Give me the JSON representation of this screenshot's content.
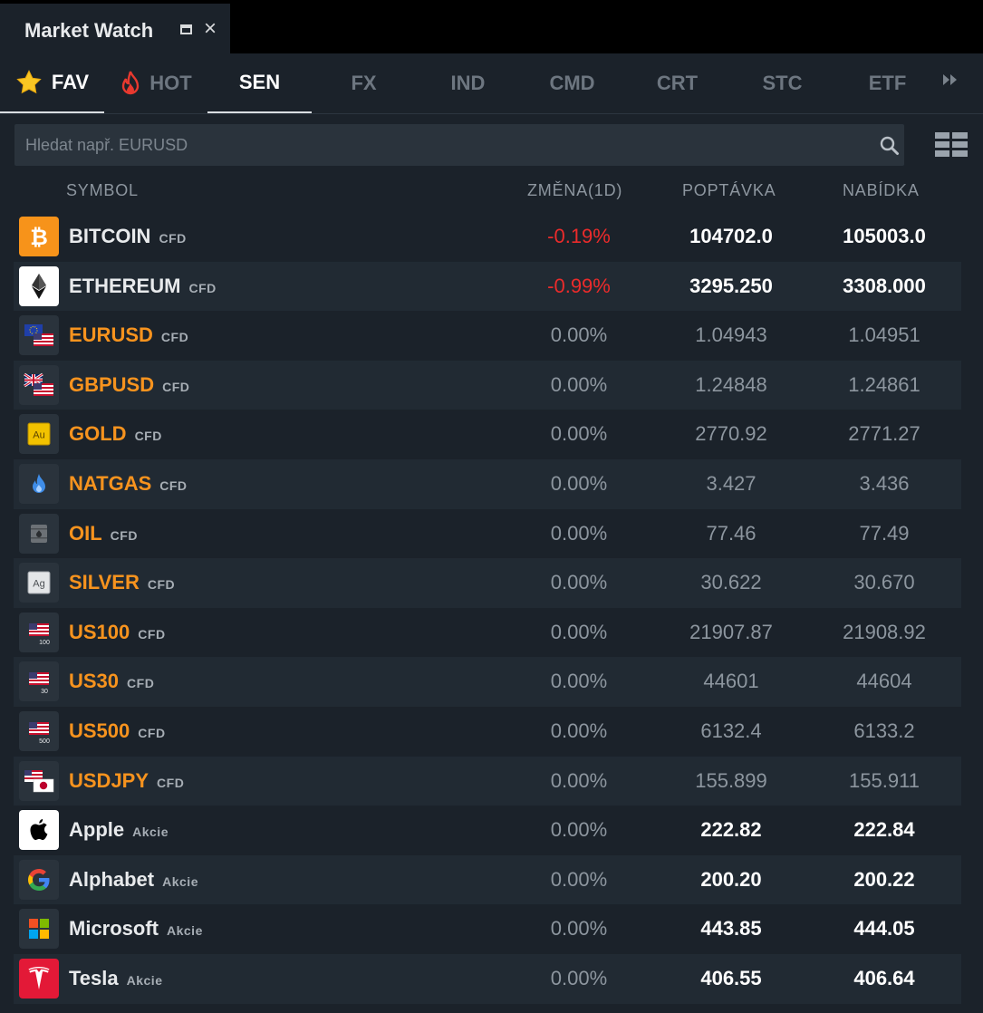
{
  "window": {
    "title": "Market Watch"
  },
  "tabs": [
    {
      "label": "FAV",
      "icon": "star-icon"
    },
    {
      "label": "HOT",
      "icon": "fire-icon"
    },
    {
      "label": "SEN",
      "active": true
    },
    {
      "label": "FX"
    },
    {
      "label": "IND"
    },
    {
      "label": "CMD"
    },
    {
      "label": "CRT"
    },
    {
      "label": "STC"
    },
    {
      "label": "ETF"
    }
  ],
  "search": {
    "placeholder": "Hledat např. EURUSD"
  },
  "columns": {
    "symbol": "SYMBOL",
    "change": "ZMĚNA(1D)",
    "bid": "POPTÁVKA",
    "ask": "NABÍDKA"
  },
  "colors": {
    "negative": "#ec2b2b",
    "accent_orange": "#f7931e",
    "bg": "#1b222a",
    "row_alt": "#212a33"
  },
  "rows": [
    {
      "symbol": "BITCOIN",
      "tag": "CFD",
      "change": "-0.19%",
      "bid": "104702.0",
      "ask": "105003.0",
      "icon": "bitcoin-icon"
    },
    {
      "symbol": "ETHEREUM",
      "tag": "CFD",
      "change": "-0.99%",
      "bid": "3295.250",
      "ask": "3308.000",
      "icon": "ethereum-icon"
    },
    {
      "symbol": "EURUSD",
      "tag": "CFD",
      "change": "0.00%",
      "bid": "1.04943",
      "ask": "1.04951",
      "icon": "eu-us-flag-icon"
    },
    {
      "symbol": "GBPUSD",
      "tag": "CFD",
      "change": "0.00%",
      "bid": "1.24848",
      "ask": "1.24861",
      "icon": "gb-us-flag-icon"
    },
    {
      "symbol": "GOLD",
      "tag": "CFD",
      "change": "0.00%",
      "bid": "2770.92",
      "ask": "2771.27",
      "icon": "gold-icon",
      "icon_text": "Au"
    },
    {
      "symbol": "NATGAS",
      "tag": "CFD",
      "change": "0.00%",
      "bid": "3.427",
      "ask": "3.436",
      "icon": "gas-flame-icon"
    },
    {
      "symbol": "OIL",
      "tag": "CFD",
      "change": "0.00%",
      "bid": "77.46",
      "ask": "77.49",
      "icon": "oil-barrel-icon"
    },
    {
      "symbol": "SILVER",
      "tag": "CFD",
      "change": "0.00%",
      "bid": "30.622",
      "ask": "30.670",
      "icon": "silver-icon",
      "icon_text": "Ag"
    },
    {
      "symbol": "US100",
      "tag": "CFD",
      "change": "0.00%",
      "bid": "21907.87",
      "ask": "21908.92",
      "icon": "us-flag-icon",
      "icon_text": "100"
    },
    {
      "symbol": "US30",
      "tag": "CFD",
      "change": "0.00%",
      "bid": "44601",
      "ask": "44604",
      "icon": "us-flag-icon",
      "icon_text": "30"
    },
    {
      "symbol": "US500",
      "tag": "CFD",
      "change": "0.00%",
      "bid": "6132.4",
      "ask": "6133.2",
      "icon": "us-flag-icon",
      "icon_text": "500"
    },
    {
      "symbol": "USDJPY",
      "tag": "CFD",
      "change": "0.00%",
      "bid": "155.899",
      "ask": "155.911",
      "icon": "us-jp-flag-icon"
    },
    {
      "symbol": "Apple",
      "tag": "Akcie",
      "change": "0.00%",
      "bid": "222.82",
      "ask": "222.84",
      "icon": "apple-logo-icon"
    },
    {
      "symbol": "Alphabet",
      "tag": "Akcie",
      "change": "0.00%",
      "bid": "200.20",
      "ask": "200.22",
      "icon": "google-logo-icon"
    },
    {
      "symbol": "Microsoft",
      "tag": "Akcie",
      "change": "0.00%",
      "bid": "443.85",
      "ask": "444.05",
      "icon": "microsoft-logo-icon"
    },
    {
      "symbol": "Tesla",
      "tag": "Akcie",
      "change": "0.00%",
      "bid": "406.55",
      "ask": "406.64",
      "icon": "tesla-logo-icon"
    }
  ]
}
